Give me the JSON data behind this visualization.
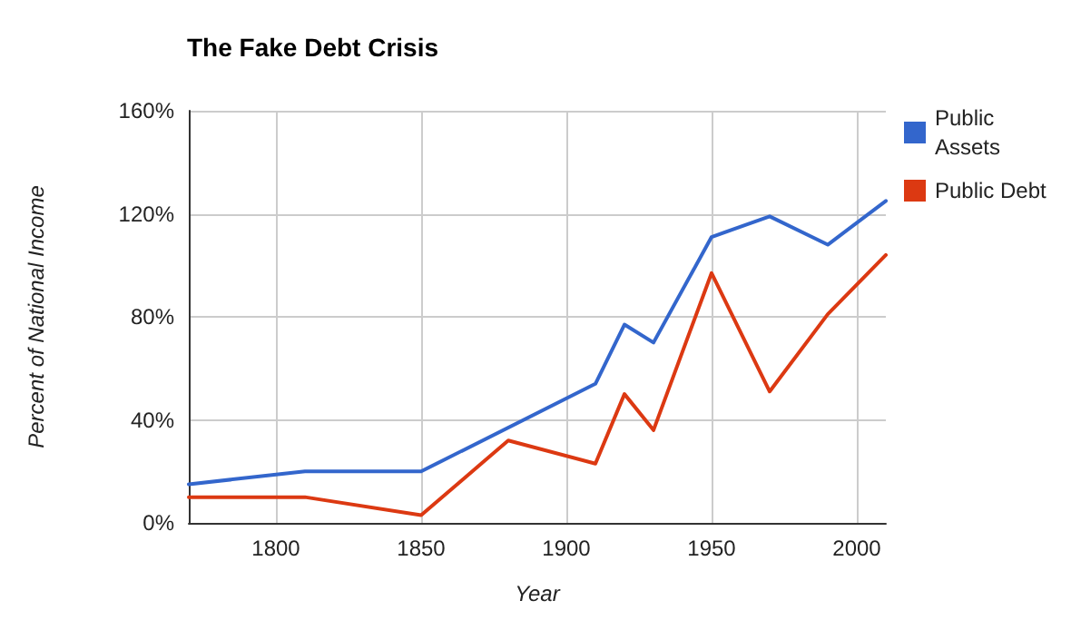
{
  "chart_data": {
    "type": "line",
    "title": "The Fake Debt Crisis",
    "xlabel": "Year",
    "ylabel": "Percent of National Income",
    "series": [
      {
        "name": "Public Assets",
        "color": "#3366cc",
        "x": [
          1770,
          1810,
          1850,
          1910,
          1920,
          1930,
          1950,
          1970,
          1990,
          2010
        ],
        "values": [
          15,
          20,
          20,
          54,
          77,
          70,
          111,
          119,
          108,
          125
        ]
      },
      {
        "name": "Public Debt",
        "color": "#dc3912",
        "x": [
          1770,
          1810,
          1850,
          1880,
          1910,
          1920,
          1930,
          1950,
          1970,
          1990,
          2010
        ],
        "values": [
          10,
          10,
          3,
          32,
          23,
          50,
          36,
          97,
          51,
          81,
          104
        ]
      }
    ],
    "xlim": [
      1770,
      2010
    ],
    "xticks": [
      1800,
      1850,
      1900,
      1950,
      2000
    ],
    "ylim": [
      0,
      160
    ],
    "yticks": [
      {
        "value": 0,
        "label": "0%"
      },
      {
        "value": 40,
        "label": "40%"
      },
      {
        "value": 80,
        "label": "80%"
      },
      {
        "value": 120,
        "label": "120%"
      },
      {
        "value": 160,
        "label": "160%"
      }
    ],
    "grid": true,
    "legend": "top right",
    "marker": "none",
    "line_style": "solid"
  }
}
